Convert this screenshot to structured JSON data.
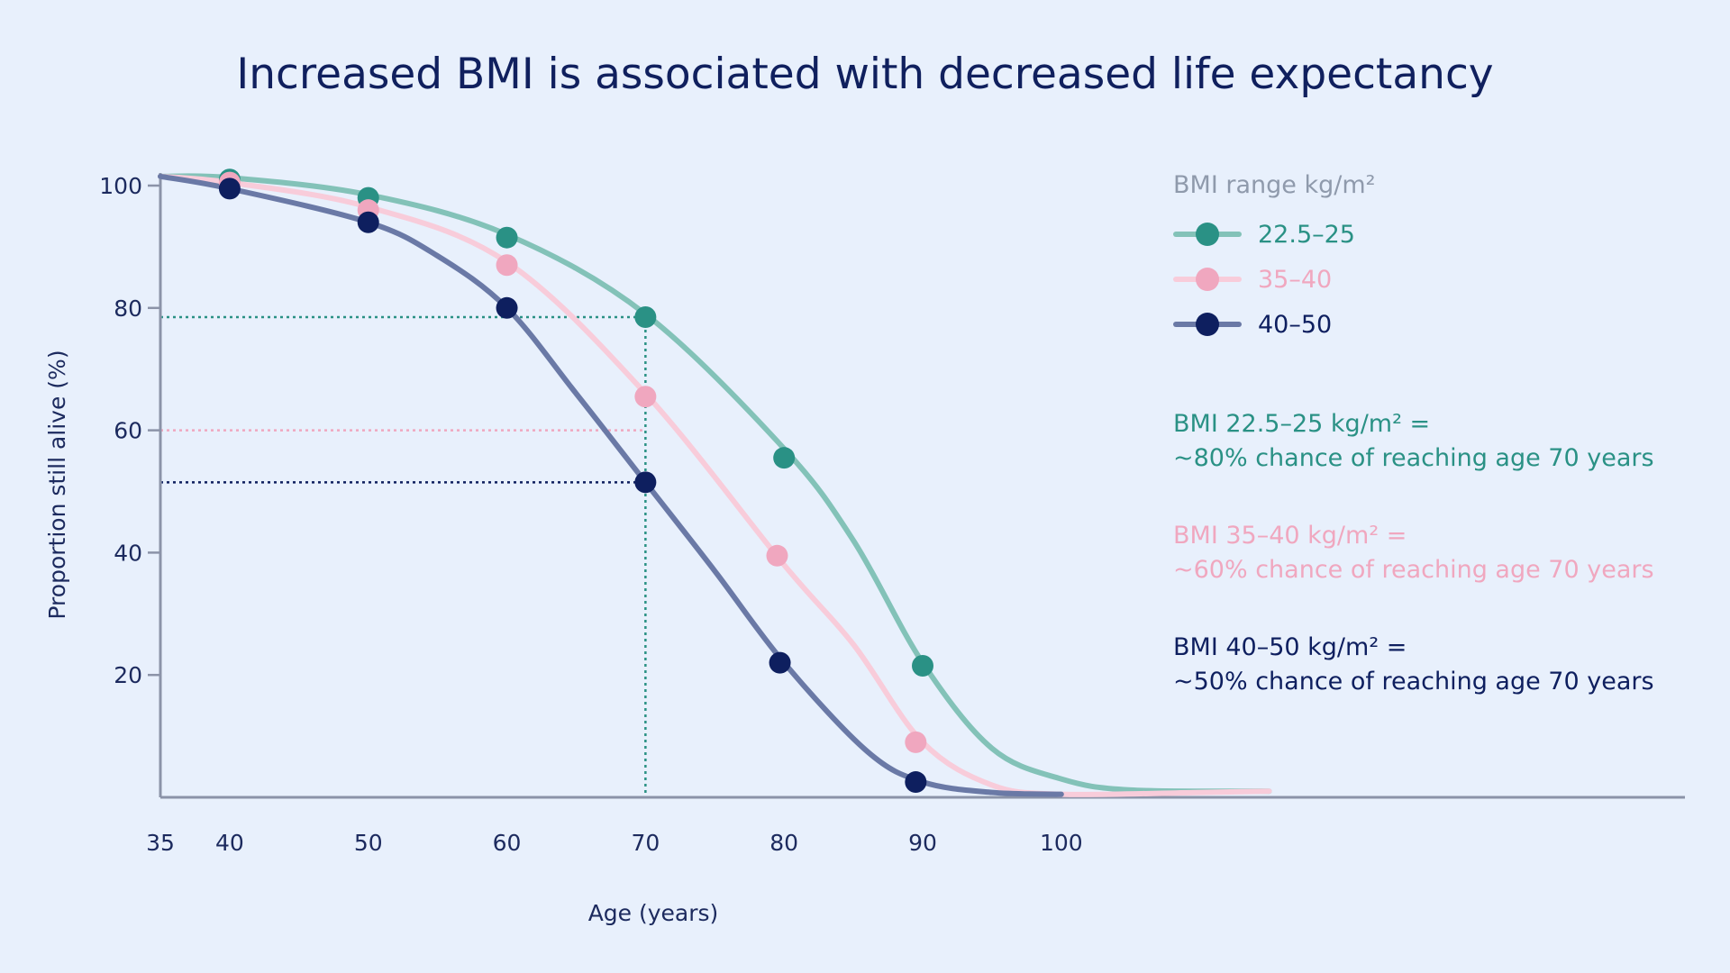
{
  "title": "Increased BMI is associated with decreased life expectancy",
  "legend": {
    "title": "BMI range kg/m²",
    "items": [
      {
        "label": "22.5–25",
        "color": "#2a9185",
        "line_color": "#83c2b8"
      },
      {
        "label": "35–40",
        "color": "#f0a7bf",
        "line_color": "#f8ccda"
      },
      {
        "label": "40–50",
        "color": "#0e1f5f",
        "line_color": "#6a79a6"
      }
    ]
  },
  "notes": [
    {
      "line1": "BMI 22.5–25 kg/m² =",
      "line2": "~80% chance of reaching age 70 years",
      "color": "#2a9185"
    },
    {
      "line1": "BMI 35–40 kg/m² =",
      "line2": "~60% chance of reaching age 70 years",
      "color": "#f0a7bf"
    },
    {
      "line1": "BMI 40–50 kg/m² =",
      "line2": "~50% chance of reaching age 70 years",
      "color": "#0e1f5f"
    }
  ],
  "chart_data": {
    "type": "line",
    "title": "Increased BMI is associated with decreased life expectancy",
    "xlabel": "Age (years)",
    "ylabel": "Proportion still alive (%)",
    "xlim": [
      35,
      145
    ],
    "ylim": [
      0,
      100
    ],
    "x_ticks": [
      35,
      40,
      50,
      60,
      70,
      80,
      90,
      100
    ],
    "y_ticks": [
      20,
      40,
      60,
      80,
      100
    ],
    "grid": false,
    "legend_position": "top-right",
    "series": [
      {
        "name": "22.5–25",
        "points": [
          [
            40,
            101
          ],
          [
            50,
            98
          ],
          [
            60,
            91.5
          ],
          [
            70,
            78.5
          ],
          [
            80,
            55.5
          ],
          [
            90,
            21.5
          ]
        ],
        "curve": [
          [
            35,
            101.5
          ],
          [
            40,
            101.3
          ],
          [
            50,
            98.5
          ],
          [
            60,
            92
          ],
          [
            70,
            79
          ],
          [
            80,
            57
          ],
          [
            85,
            42
          ],
          [
            90,
            22
          ],
          [
            95,
            8
          ],
          [
            100,
            3
          ],
          [
            105,
            1.2
          ],
          [
            115,
            1
          ]
        ]
      },
      {
        "name": "35–40",
        "points": [
          [
            40,
            100.5
          ],
          [
            50,
            96
          ],
          [
            60,
            87
          ],
          [
            70,
            65.5
          ],
          [
            79.5,
            39.5
          ],
          [
            89.5,
            9
          ]
        ],
        "curve": [
          [
            35,
            101.5
          ],
          [
            40,
            100.5
          ],
          [
            50,
            96.5
          ],
          [
            60,
            87.5
          ],
          [
            70,
            66
          ],
          [
            80,
            38
          ],
          [
            85,
            25
          ],
          [
            90,
            9
          ],
          [
            95,
            2
          ],
          [
            100,
            0.5
          ],
          [
            110,
            0.8
          ],
          [
            115,
            1
          ]
        ]
      },
      {
        "name": "40–50",
        "points": [
          [
            40,
            99.5
          ],
          [
            50,
            94
          ],
          [
            60,
            80
          ],
          [
            70,
            51.5
          ],
          [
            79.7,
            22
          ],
          [
            89.5,
            2.5
          ]
        ],
        "curve": [
          [
            35,
            101.5
          ],
          [
            40,
            99.5
          ],
          [
            50,
            94
          ],
          [
            55,
            88.5
          ],
          [
            60,
            80
          ],
          [
            65,
            66
          ],
          [
            70,
            51.5
          ],
          [
            75,
            37
          ],
          [
            80,
            22
          ],
          [
            86,
            7.5
          ],
          [
            90,
            2.5
          ],
          [
            95,
            0.8
          ],
          [
            100,
            0.5
          ]
        ]
      }
    ],
    "reference_lines": [
      {
        "y": 78.5,
        "color": "#2a9185"
      },
      {
        "y": 60,
        "color": "#f0a7bf"
      },
      {
        "y": 51.5,
        "color": "#0e1f5f"
      },
      {
        "x": 70,
        "color": "#2a9185"
      }
    ]
  }
}
